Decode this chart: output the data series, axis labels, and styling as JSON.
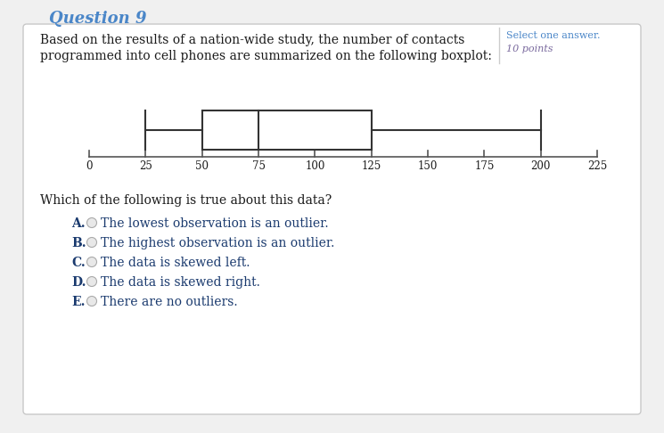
{
  "title": "Question 9",
  "question_text_line1": "Based on the results of a nation-wide study, the number of contacts",
  "question_text_line2": "programmed into cell phones are summarized on the following boxplot:",
  "select_text": "Select one answer.",
  "points_text": "10 points",
  "boxplot": {
    "whisker_low": 25,
    "q1": 50,
    "median": 75,
    "q3": 125,
    "whisker_high": 200,
    "axis_min": 0,
    "axis_max": 225,
    "axis_ticks": [
      0,
      25,
      50,
      75,
      100,
      125,
      150,
      175,
      200,
      225
    ]
  },
  "question_label": "Which of the following is true about this data?",
  "choices": [
    {
      "letter": "A.",
      "text": "The lowest observation is an outlier."
    },
    {
      "letter": "B.",
      "text": "The highest observation is an outlier."
    },
    {
      "letter": "C.",
      "text": "The data is skewed left."
    },
    {
      "letter": "D.",
      "text": "The data is skewed right."
    },
    {
      "letter": "E.",
      "text": "There are no outliers."
    }
  ],
  "bg_color": "#f0f0f0",
  "card_color": "#ffffff",
  "title_color": "#4a86c8",
  "text_color": "#1a1a1a",
  "choice_color": "#1a3a6e",
  "select_color": "#4a86c8",
  "points_color": "#7a6a9e",
  "box_color": "#333333",
  "axis_color": "#555555",
  "divider_color": "#cccccc"
}
